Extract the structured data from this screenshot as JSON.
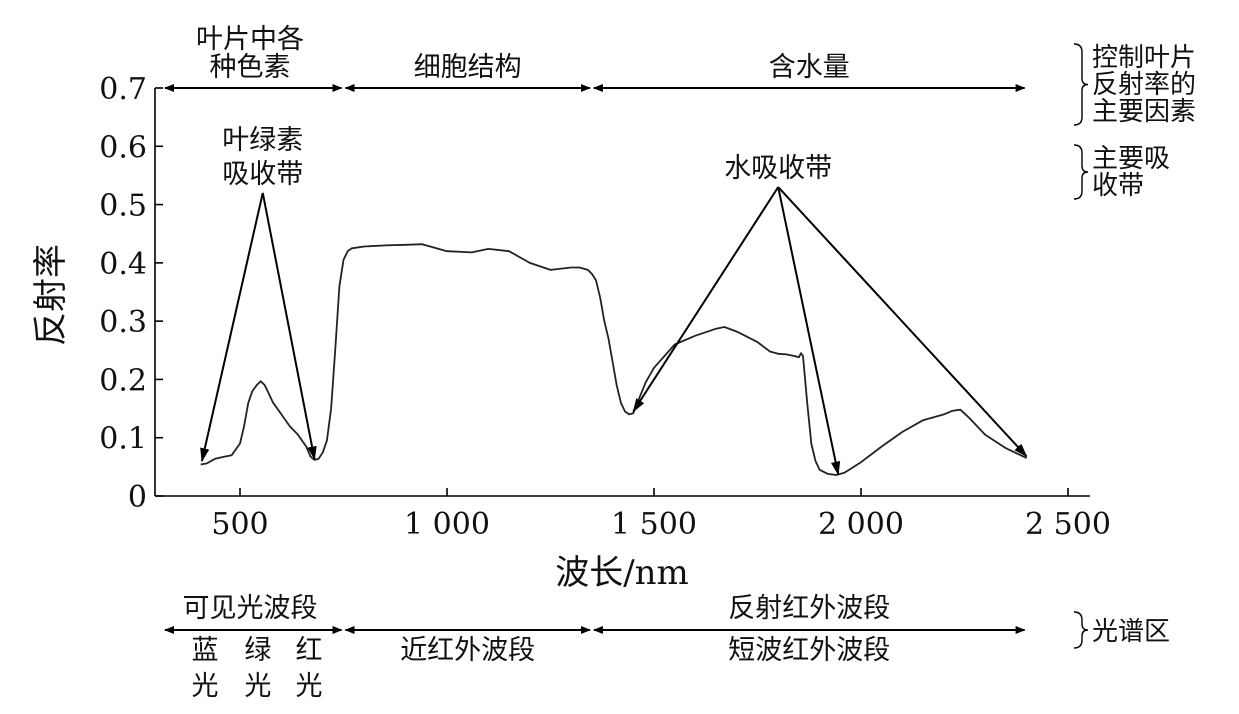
{
  "chart_data": {
    "type": "line",
    "xlabel": "波长/nm",
    "ylabel": "反射率",
    "xlim": [
      300,
      2500
    ],
    "ylim": [
      0,
      0.7
    ],
    "x_ticks": [
      {
        "value": 500,
        "label": "500"
      },
      {
        "value": 1000,
        "label": "1 000"
      },
      {
        "value": 1500,
        "label": "1 500"
      },
      {
        "value": 2000,
        "label": "2 000"
      },
      {
        "value": 2500,
        "label": "2 500"
      }
    ],
    "y_ticks": [
      {
        "value": 0,
        "label": "0"
      },
      {
        "value": 0.1,
        "label": "0.1"
      },
      {
        "value": 0.2,
        "label": "0.2"
      },
      {
        "value": 0.3,
        "label": "0.3"
      },
      {
        "value": 0.4,
        "label": "0.4"
      },
      {
        "value": 0.5,
        "label": "0.5"
      },
      {
        "value": 0.6,
        "label": "0.6"
      },
      {
        "value": 0.7,
        "label": "0.7"
      }
    ],
    "series": [
      {
        "x": [
          405,
          420,
          440,
          460,
          480,
          500,
          510,
          520,
          530,
          540,
          550,
          560,
          570,
          580,
          600,
          620,
          640,
          660,
          670,
          680,
          690,
          700,
          710,
          720,
          730,
          740,
          750,
          760,
          770,
          800,
          850,
          900,
          940,
          1000,
          1060,
          1100,
          1150,
          1200,
          1250,
          1300,
          1320,
          1340,
          1350,
          1360,
          1370,
          1380,
          1390,
          1400,
          1410,
          1420,
          1430,
          1440,
          1450,
          1460,
          1480,
          1500,
          1550,
          1600,
          1650,
          1670,
          1700,
          1750,
          1780,
          1800,
          1820,
          1840,
          1850,
          1855,
          1860,
          1870,
          1880,
          1890,
          1900,
          1920,
          1940,
          1960,
          2000,
          2050,
          2100,
          2150,
          2200,
          2220,
          2240,
          2260,
          2300,
          2350,
          2400
        ],
        "y": [
          0.054,
          0.056,
          0.064,
          0.067,
          0.07,
          0.09,
          0.12,
          0.16,
          0.18,
          0.19,
          0.197,
          0.19,
          0.175,
          0.16,
          0.14,
          0.12,
          0.105,
          0.085,
          0.068,
          0.062,
          0.064,
          0.075,
          0.095,
          0.15,
          0.25,
          0.36,
          0.405,
          0.42,
          0.425,
          0.428,
          0.43,
          0.431,
          0.432,
          0.42,
          0.418,
          0.424,
          0.42,
          0.4,
          0.388,
          0.392,
          0.392,
          0.388,
          0.381,
          0.37,
          0.34,
          0.3,
          0.27,
          0.23,
          0.19,
          0.16,
          0.145,
          0.14,
          0.142,
          0.16,
          0.195,
          0.22,
          0.26,
          0.275,
          0.287,
          0.29,
          0.282,
          0.264,
          0.248,
          0.244,
          0.243,
          0.24,
          0.238,
          0.245,
          0.24,
          0.16,
          0.09,
          0.06,
          0.045,
          0.038,
          0.036,
          0.04,
          0.058,
          0.085,
          0.11,
          0.13,
          0.14,
          0.146,
          0.148,
          0.135,
          0.105,
          0.082,
          0.065
        ]
      }
    ],
    "top_regions": [
      {
        "label_lines": [
          "叶片中各",
          "种色素"
        ],
        "x_start": 300,
        "x_end": 750
      },
      {
        "label_lines": [
          "细胞结构"
        ],
        "x_start": 750,
        "x_end": 1350
      },
      {
        "label_lines": [
          "含水量"
        ],
        "x_start": 1350,
        "x_end": 2400
      }
    ],
    "bottom_regions_row1": [
      {
        "label": "可见光波段",
        "x_start": 300,
        "x_end": 750
      },
      {
        "label": "反射红外波段",
        "x_start": 1350,
        "x_end": 2400
      }
    ],
    "bottom_regions_row2": [
      {
        "label_lines": [
          "蓝",
          "光"
        ],
        "x": 360
      },
      {
        "label_lines": [
          "绿",
          "光"
        ],
        "x": 505
      },
      {
        "label_lines": [
          "红",
          "光"
        ],
        "x": 645
      },
      {
        "label_lines": [
          "近红外波段"
        ],
        "x": 1050
      },
      {
        "label_lines": [
          "短波红外波段"
        ],
        "x": 1875
      }
    ],
    "row2_arrows": [
      {
        "x_start": 300,
        "x_end": 750
      },
      {
        "x_start": 750,
        "x_end": 1350
      },
      {
        "x_start": 1350,
        "x_end": 2400
      }
    ],
    "annotations": [
      {
        "label_lines": [
          "叶绿素",
          "吸收带"
        ],
        "anchor": {
          "x": 555,
          "y": 0.52
        },
        "targets": [
          {
            "x": 408,
            "y": 0.06
          },
          {
            "x": 680,
            "y": 0.063
          }
        ]
      },
      {
        "label_lines": [
          "水吸收带"
        ],
        "anchor": {
          "x": 1800,
          "y": 0.53
        },
        "targets": [
          {
            "x": 1450,
            "y": 0.145
          },
          {
            "x": 1945,
            "y": 0.037
          },
          {
            "x": 2400,
            "y": 0.068
          }
        ]
      }
    ],
    "side_labels": [
      {
        "label_lines": [
          "控制叶片",
          "反射率的",
          "主要因素"
        ]
      },
      {
        "label_lines": [
          "主要吸",
          "收带"
        ]
      },
      {
        "label_lines": [
          "光谱区"
        ]
      }
    ],
    "grid": false,
    "legend": "none"
  }
}
